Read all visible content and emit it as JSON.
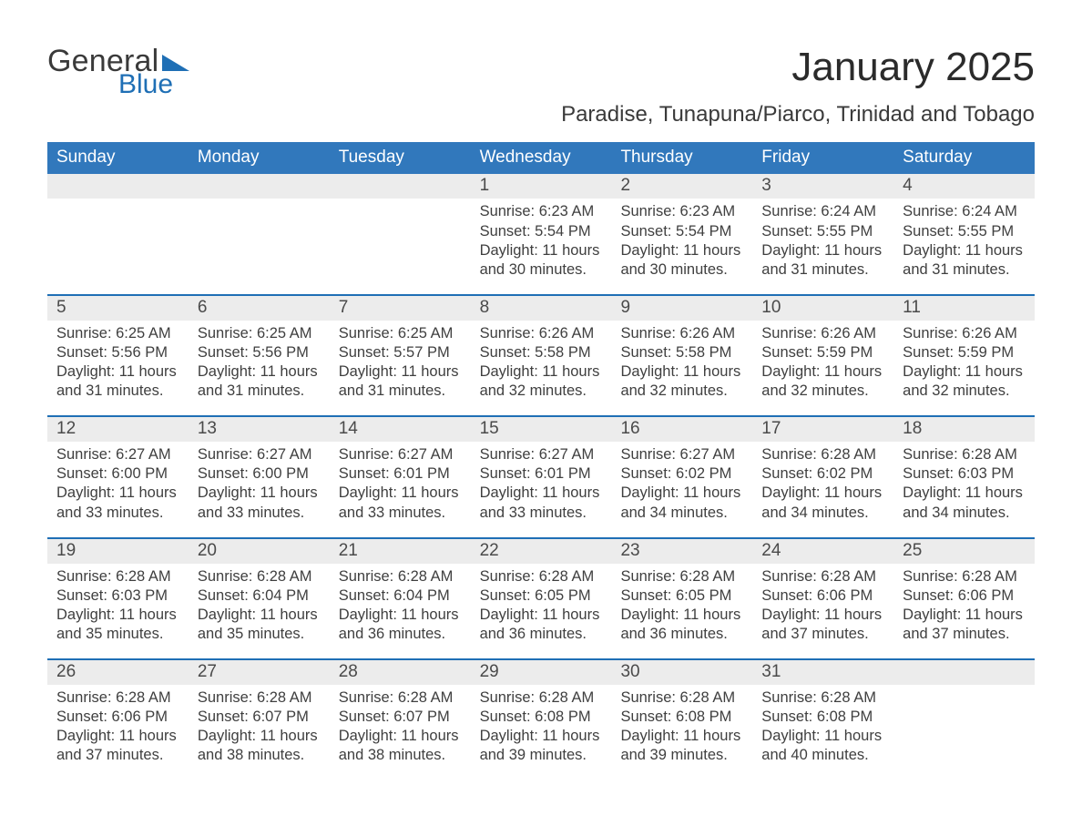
{
  "colors": {
    "header_blue": "#3178bc",
    "accent_blue": "#1f6fb5",
    "row_grey": "#ececec",
    "background": "#ffffff",
    "text_dark": "#3a3a3a"
  },
  "logo": {
    "line1": "General",
    "line2": "Blue"
  },
  "title": "January 2025",
  "location": "Paradise, Tunapuna/Piarco, Trinidad and Tobago",
  "weekdays": [
    "Sunday",
    "Monday",
    "Tuesday",
    "Wednesday",
    "Thursday",
    "Friday",
    "Saturday"
  ],
  "calendar": {
    "leading_blanks": 3,
    "days": [
      {
        "n": 1,
        "sunrise": "6:23 AM",
        "sunset": "5:54 PM",
        "daylight": "11 hours and 30 minutes."
      },
      {
        "n": 2,
        "sunrise": "6:23 AM",
        "sunset": "5:54 PM",
        "daylight": "11 hours and 30 minutes."
      },
      {
        "n": 3,
        "sunrise": "6:24 AM",
        "sunset": "5:55 PM",
        "daylight": "11 hours and 31 minutes."
      },
      {
        "n": 4,
        "sunrise": "6:24 AM",
        "sunset": "5:55 PM",
        "daylight": "11 hours and 31 minutes."
      },
      {
        "n": 5,
        "sunrise": "6:25 AM",
        "sunset": "5:56 PM",
        "daylight": "11 hours and 31 minutes."
      },
      {
        "n": 6,
        "sunrise": "6:25 AM",
        "sunset": "5:56 PM",
        "daylight": "11 hours and 31 minutes."
      },
      {
        "n": 7,
        "sunrise": "6:25 AM",
        "sunset": "5:57 PM",
        "daylight": "11 hours and 31 minutes."
      },
      {
        "n": 8,
        "sunrise": "6:26 AM",
        "sunset": "5:58 PM",
        "daylight": "11 hours and 32 minutes."
      },
      {
        "n": 9,
        "sunrise": "6:26 AM",
        "sunset": "5:58 PM",
        "daylight": "11 hours and 32 minutes."
      },
      {
        "n": 10,
        "sunrise": "6:26 AM",
        "sunset": "5:59 PM",
        "daylight": "11 hours and 32 minutes."
      },
      {
        "n": 11,
        "sunrise": "6:26 AM",
        "sunset": "5:59 PM",
        "daylight": "11 hours and 32 minutes."
      },
      {
        "n": 12,
        "sunrise": "6:27 AM",
        "sunset": "6:00 PM",
        "daylight": "11 hours and 33 minutes."
      },
      {
        "n": 13,
        "sunrise": "6:27 AM",
        "sunset": "6:00 PM",
        "daylight": "11 hours and 33 minutes."
      },
      {
        "n": 14,
        "sunrise": "6:27 AM",
        "sunset": "6:01 PM",
        "daylight": "11 hours and 33 minutes."
      },
      {
        "n": 15,
        "sunrise": "6:27 AM",
        "sunset": "6:01 PM",
        "daylight": "11 hours and 33 minutes."
      },
      {
        "n": 16,
        "sunrise": "6:27 AM",
        "sunset": "6:02 PM",
        "daylight": "11 hours and 34 minutes."
      },
      {
        "n": 17,
        "sunrise": "6:28 AM",
        "sunset": "6:02 PM",
        "daylight": "11 hours and 34 minutes."
      },
      {
        "n": 18,
        "sunrise": "6:28 AM",
        "sunset": "6:03 PM",
        "daylight": "11 hours and 34 minutes."
      },
      {
        "n": 19,
        "sunrise": "6:28 AM",
        "sunset": "6:03 PM",
        "daylight": "11 hours and 35 minutes."
      },
      {
        "n": 20,
        "sunrise": "6:28 AM",
        "sunset": "6:04 PM",
        "daylight": "11 hours and 35 minutes."
      },
      {
        "n": 21,
        "sunrise": "6:28 AM",
        "sunset": "6:04 PM",
        "daylight": "11 hours and 36 minutes."
      },
      {
        "n": 22,
        "sunrise": "6:28 AM",
        "sunset": "6:05 PM",
        "daylight": "11 hours and 36 minutes."
      },
      {
        "n": 23,
        "sunrise": "6:28 AM",
        "sunset": "6:05 PM",
        "daylight": "11 hours and 36 minutes."
      },
      {
        "n": 24,
        "sunrise": "6:28 AM",
        "sunset": "6:06 PM",
        "daylight": "11 hours and 37 minutes."
      },
      {
        "n": 25,
        "sunrise": "6:28 AM",
        "sunset": "6:06 PM",
        "daylight": "11 hours and 37 minutes."
      },
      {
        "n": 26,
        "sunrise": "6:28 AM",
        "sunset": "6:06 PM",
        "daylight": "11 hours and 37 minutes."
      },
      {
        "n": 27,
        "sunrise": "6:28 AM",
        "sunset": "6:07 PM",
        "daylight": "11 hours and 38 minutes."
      },
      {
        "n": 28,
        "sunrise": "6:28 AM",
        "sunset": "6:07 PM",
        "daylight": "11 hours and 38 minutes."
      },
      {
        "n": 29,
        "sunrise": "6:28 AM",
        "sunset": "6:08 PM",
        "daylight": "11 hours and 39 minutes."
      },
      {
        "n": 30,
        "sunrise": "6:28 AM",
        "sunset": "6:08 PM",
        "daylight": "11 hours and 39 minutes."
      },
      {
        "n": 31,
        "sunrise": "6:28 AM",
        "sunset": "6:08 PM",
        "daylight": "11 hours and 40 minutes."
      }
    ]
  },
  "labels": {
    "sunrise": "Sunrise:",
    "sunset": "Sunset:",
    "daylight": "Daylight:"
  }
}
